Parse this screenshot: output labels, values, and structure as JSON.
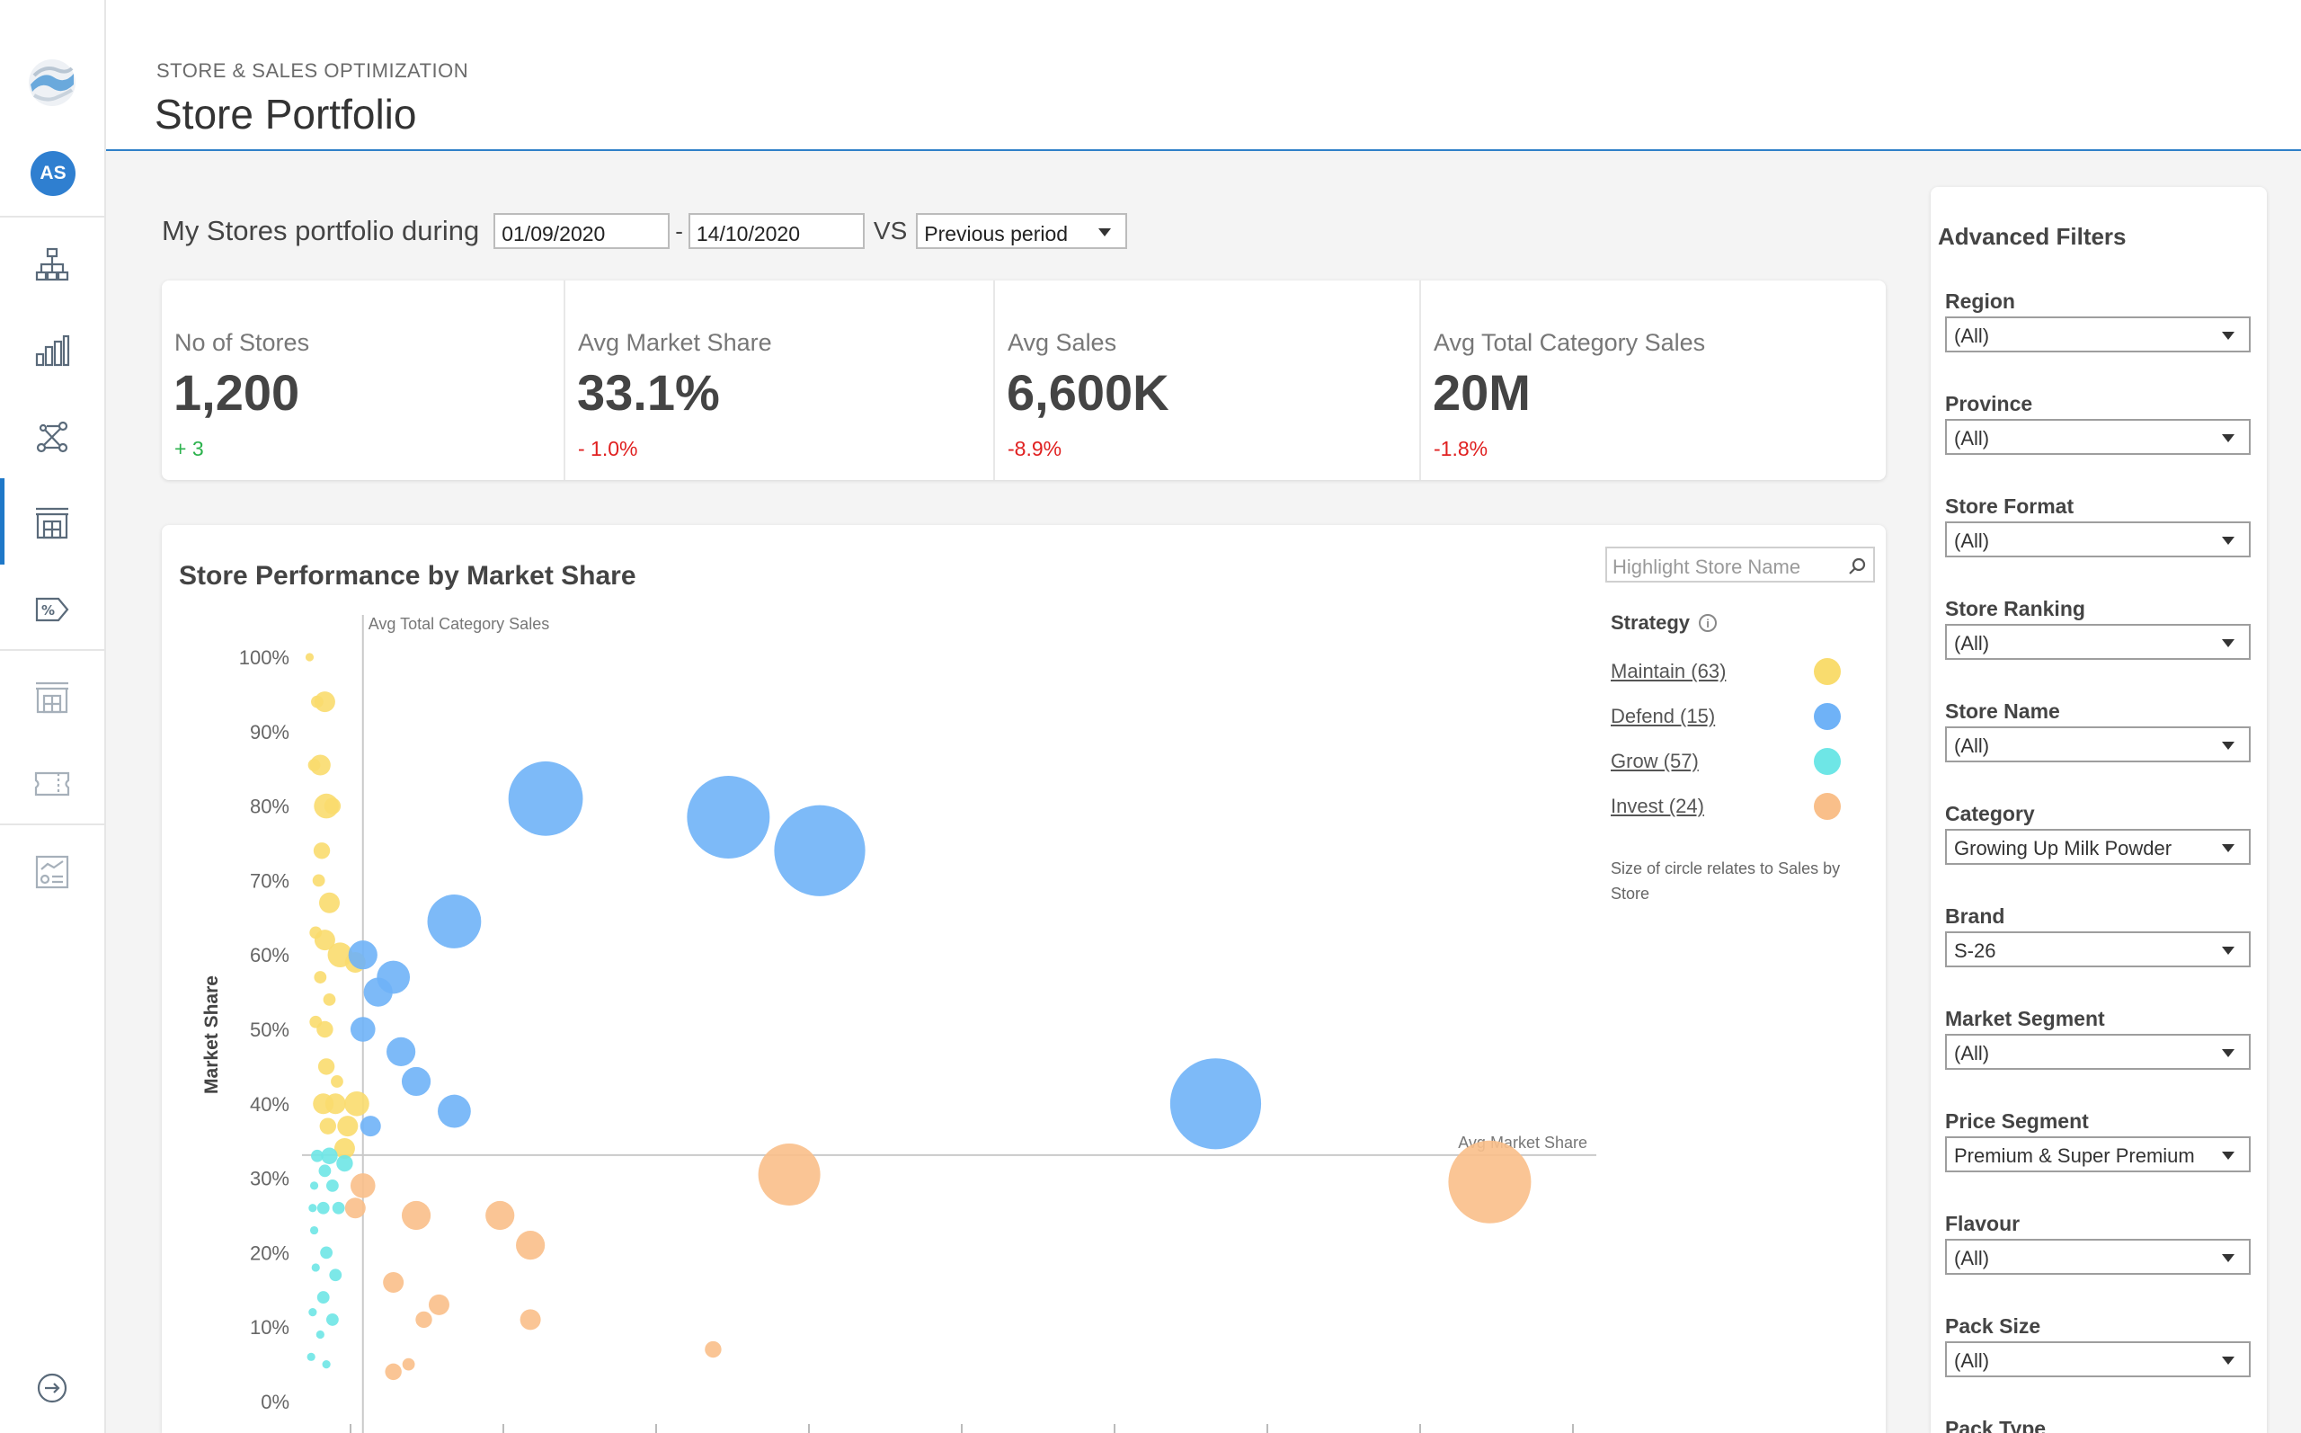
{
  "header": {
    "breadcrumb": "STORE & SALES OPTIMIZATION",
    "title": "Store Portfolio"
  },
  "nav": {
    "avatar_initials": "AS",
    "items": [
      {
        "name": "hierarchy-icon"
      },
      {
        "name": "bar-chart-icon"
      },
      {
        "name": "network-icon"
      },
      {
        "name": "store-icon",
        "active": true
      },
      {
        "name": "discount-tag-icon"
      },
      {
        "name": "store-outline-icon"
      },
      {
        "name": "ticket-icon"
      },
      {
        "name": "report-icon"
      }
    ],
    "logout_icon": "logout-icon"
  },
  "period": {
    "label": "My Stores portfolio during",
    "start_date": "01/09/2020",
    "dash": "-",
    "end_date": "14/10/2020",
    "vs": "VS",
    "comparison": "Previous period"
  },
  "kpis": [
    {
      "label": "No of Stores",
      "value": "1,200",
      "delta": "+ 3",
      "trend": "positive"
    },
    {
      "label": "Avg Market Share",
      "value": "33.1%",
      "delta": "- 1.0%",
      "trend": "negative"
    },
    {
      "label": "Avg Sales",
      "value": "6,600K",
      "delta": "-8.9%",
      "trend": "negative"
    },
    {
      "label": "Avg Total Category Sales",
      "value": "20M",
      "delta": "-1.8%",
      "trend": "negative"
    }
  ],
  "chart": {
    "title": "Store Performance by Market Share",
    "search_placeholder": "Highlight Store Name",
    "legend_title": "Strategy",
    "info_glyph": "i",
    "legend": [
      {
        "label": "Maintain (63)",
        "color": "#f9dc6e"
      },
      {
        "label": "Defend (15)",
        "color": "#6fb2f7"
      },
      {
        "label": "Grow (57)",
        "color": "#6ee6e6"
      },
      {
        "label": "Invest (24)",
        "color": "#f9bf8a"
      }
    ],
    "size_note": "Size of circle relates to Sales by Store"
  },
  "chart_data": {
    "type": "scatter",
    "xlabel": "",
    "ylabel": "Market Share",
    "ylim": [
      0,
      100
    ],
    "y_ticks": [
      "0%",
      "10%",
      "20%",
      "30%",
      "40%",
      "50%",
      "60%",
      "70%",
      "80%",
      "90%",
      "100%"
    ],
    "reference_lines": [
      {
        "axis": "x",
        "label": "Avg Total Category Sales",
        "value": 4
      },
      {
        "axis": "y",
        "label": "Avg Market Share",
        "value": 33.1
      }
    ],
    "xlim": [
      0,
      85
    ],
    "grid": false,
    "series": [
      {
        "name": "Maintain",
        "color": "#f9dc6e",
        "points": [
          [
            0.5,
            100,
            2
          ],
          [
            1,
            94,
            3
          ],
          [
            1.5,
            94,
            5
          ],
          [
            0.8,
            85.5,
            3
          ],
          [
            1.2,
            85.5,
            5
          ],
          [
            1.6,
            80,
            6
          ],
          [
            2,
            80,
            4
          ],
          [
            1.3,
            74,
            4
          ],
          [
            1.1,
            70,
            3
          ],
          [
            1.8,
            67,
            5
          ],
          [
            0.9,
            63,
            3
          ],
          [
            1.5,
            62,
            5
          ],
          [
            2.5,
            60,
            6
          ],
          [
            3.5,
            59,
            5
          ],
          [
            1.2,
            57,
            3
          ],
          [
            1.8,
            54,
            3
          ],
          [
            0.9,
            51,
            3
          ],
          [
            1.5,
            50,
            4
          ],
          [
            1.6,
            45,
            4
          ],
          [
            2.3,
            43,
            3
          ],
          [
            1.4,
            40,
            5
          ],
          [
            2.2,
            40,
            5
          ],
          [
            3.6,
            40,
            6
          ],
          [
            1.7,
            37,
            4
          ],
          [
            3.0,
            37,
            5
          ],
          [
            2.8,
            34,
            5
          ]
        ]
      },
      {
        "name": "Defend",
        "color": "#6fb2f7",
        "points": [
          [
            16,
            81,
            18
          ],
          [
            28,
            78.5,
            20
          ],
          [
            34,
            74,
            22
          ],
          [
            10,
            64.5,
            13
          ],
          [
            4,
            60,
            7
          ],
          [
            6,
            57,
            8
          ],
          [
            5,
            55,
            7
          ],
          [
            4,
            50,
            6
          ],
          [
            6.5,
            47,
            7
          ],
          [
            7.5,
            43,
            7
          ],
          [
            10,
            39,
            8
          ],
          [
            4.5,
            37,
            5
          ],
          [
            60,
            40,
            22
          ]
        ]
      },
      {
        "name": "Grow",
        "color": "#6ee6e6",
        "points": [
          [
            1,
            33,
            3
          ],
          [
            1.8,
            33,
            4
          ],
          [
            2.8,
            32,
            4
          ],
          [
            1.5,
            31,
            3
          ],
          [
            0.8,
            29,
            2
          ],
          [
            2.0,
            29,
            3
          ],
          [
            0.7,
            26,
            2
          ],
          [
            1.4,
            26,
            3
          ],
          [
            2.4,
            26,
            3
          ],
          [
            0.8,
            23,
            2
          ],
          [
            1.6,
            20,
            3
          ],
          [
            0.9,
            18,
            2
          ],
          [
            2.2,
            17,
            3
          ],
          [
            1.4,
            14,
            3
          ],
          [
            0.7,
            12,
            2
          ],
          [
            2.0,
            11,
            3
          ],
          [
            1.2,
            9,
            2
          ],
          [
            0.6,
            6,
            2
          ],
          [
            1.6,
            5,
            2
          ]
        ]
      },
      {
        "name": "Invest",
        "color": "#f9bf8a",
        "points": [
          [
            32,
            30.5,
            15
          ],
          [
            4,
            29,
            6
          ],
          [
            3.5,
            26,
            5
          ],
          [
            7.5,
            25,
            7
          ],
          [
            13,
            25,
            7
          ],
          [
            15,
            21,
            7
          ],
          [
            6,
            16,
            5
          ],
          [
            9,
            13,
            5
          ],
          [
            15,
            11,
            5
          ],
          [
            8,
            11,
            4
          ],
          [
            27,
            7,
            4
          ],
          [
            6,
            4,
            4
          ],
          [
            7,
            5,
            3
          ],
          [
            78,
            29.5,
            20
          ]
        ]
      }
    ]
  },
  "filters": {
    "title": "Advanced Filters",
    "items": [
      {
        "label": "Region",
        "value": "(All)"
      },
      {
        "label": "Province",
        "value": "(All)"
      },
      {
        "label": "Store Format",
        "value": "(All)"
      },
      {
        "label": "Store Ranking",
        "value": "(All)"
      },
      {
        "label": "Store Name",
        "value": "(All)"
      },
      {
        "label": "Category",
        "value": "Growing Up Milk Powder"
      },
      {
        "label": "Brand",
        "value": "S-26"
      },
      {
        "label": "Market Segment",
        "value": "(All)"
      },
      {
        "label": "Price Segment",
        "value": "Premium & Super Premium"
      },
      {
        "label": "Flavour",
        "value": "(All)"
      },
      {
        "label": "Pack Size",
        "value": "(All)"
      },
      {
        "label": "Pack Type",
        "value": ""
      }
    ]
  }
}
